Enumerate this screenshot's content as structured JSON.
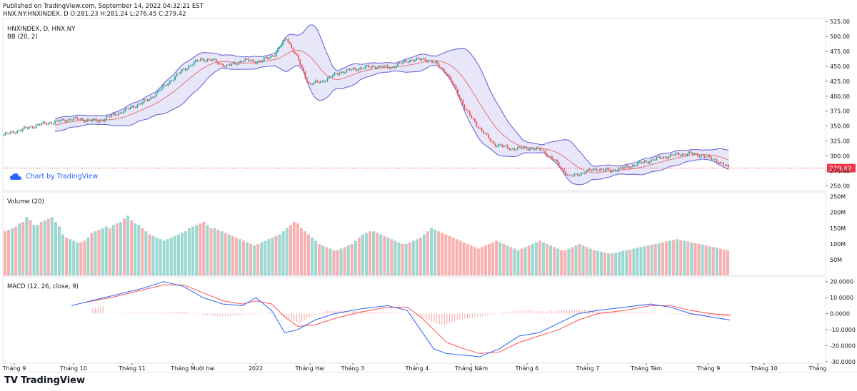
{
  "header": {
    "published": "Published on TradingView.com, September 14, 2022 04:32:21 EST",
    "ohlc": "HNX.NY:HNXINDEX, D O:281.23 H:281.24 L:276.45 C:279.42"
  },
  "price_panel": {
    "symbol_line": "HNXINDEX, D, HNX.NY",
    "indicator_line": "BB (20, 2)",
    "badge_text": "Chart by TradingView"
  },
  "volume_panel": {
    "label": "Volume (20)"
  },
  "macd_panel": {
    "label": "MACD (12, 26, close, 9)"
  },
  "footer": {
    "brand": "TradingView"
  },
  "colors": {
    "up": "#26a69a",
    "down": "#ef5350",
    "bb_band": "#5b5bd6",
    "bb_basis": "#e57373",
    "macd": "#2962ff",
    "signal": "#ff5252",
    "last_price": "#f23645"
  },
  "chart_data": [
    {
      "type": "candlestick",
      "name": "price",
      "y_axis_ticks": [
        "525.00",
        "500.00",
        "475.00",
        "450.00",
        "425.00",
        "400.00",
        "375.00",
        "350.00",
        "325.00",
        "300.00",
        "275.00",
        "250.00"
      ],
      "ylim": [
        242,
        530
      ],
      "last_price": 279.42,
      "anchors": [
        [
          0,
          335
        ],
        [
          20,
          352
        ],
        [
          40,
          362
        ],
        [
          55,
          358
        ],
        [
          70,
          375
        ],
        [
          85,
          395
        ],
        [
          95,
          420
        ],
        [
          105,
          445
        ],
        [
          115,
          462
        ],
        [
          122,
          460
        ],
        [
          130,
          450
        ],
        [
          140,
          460
        ],
        [
          150,
          458
        ],
        [
          158,
          470
        ],
        [
          165,
          498
        ],
        [
          172,
          460
        ],
        [
          178,
          420
        ],
        [
          186,
          425
        ],
        [
          196,
          440
        ],
        [
          206,
          446
        ],
        [
          216,
          450
        ],
        [
          226,
          448
        ],
        [
          236,
          460
        ],
        [
          246,
          462
        ],
        [
          252,
          455
        ],
        [
          258,
          440
        ],
        [
          264,
          410
        ],
        [
          270,
          375
        ],
        [
          278,
          345
        ],
        [
          286,
          320
        ],
        [
          296,
          312
        ],
        [
          306,
          313
        ],
        [
          314,
          310
        ],
        [
          322,
          290
        ],
        [
          330,
          265
        ],
        [
          338,
          272
        ],
        [
          346,
          278
        ],
        [
          354,
          275
        ],
        [
          362,
          280
        ],
        [
          372,
          288
        ],
        [
          382,
          296
        ],
        [
          392,
          302
        ],
        [
          400,
          304
        ],
        [
          408,
          300
        ],
        [
          416,
          292
        ],
        [
          423,
          280
        ]
      ]
    },
    {
      "type": "bar",
      "name": "volume",
      "y_axis_ticks": [
        "250M",
        "200M",
        "150M",
        "100M",
        "50M"
      ],
      "ylim": [
        0,
        265
      ],
      "values_millions": [
        140,
        145,
        150,
        155,
        165,
        170,
        185,
        175,
        160,
        160,
        170,
        175,
        180,
        185,
        170,
        155,
        130,
        120,
        115,
        110,
        105,
        105,
        110,
        120,
        135,
        140,
        145,
        150,
        155,
        150,
        160,
        165,
        170,
        180,
        190,
        175,
        165,
        160,
        150,
        140,
        130,
        125,
        120,
        115,
        110,
        115,
        120,
        125,
        130,
        135,
        140,
        150,
        155,
        160,
        165,
        170,
        160,
        150,
        150,
        145,
        140,
        135,
        130,
        125,
        120,
        115,
        110,
        105,
        100,
        95,
        100,
        105,
        110,
        115,
        120,
        125,
        130,
        140,
        150,
        160,
        170,
        165,
        150,
        140,
        130,
        120,
        110,
        100,
        95,
        90,
        85,
        80,
        80,
        85,
        90,
        95,
        100,
        110,
        120,
        130,
        135,
        140,
        140,
        135,
        130,
        125,
        120,
        115,
        110,
        105,
        100,
        100,
        105,
        110,
        115,
        120,
        130,
        140,
        150,
        145,
        140,
        135,
        130,
        125,
        120,
        115,
        110,
        105,
        100,
        95,
        90,
        85,
        90,
        95,
        100,
        105,
        110,
        105,
        100,
        95,
        90,
        85,
        80,
        85,
        90,
        95,
        100,
        105,
        110,
        105,
        100,
        95,
        90,
        85,
        80,
        80,
        85,
        90,
        95,
        100,
        95,
        90,
        85,
        80,
        78,
        75,
        72,
        70,
        70,
        72,
        75,
        78,
        80,
        82,
        85,
        88,
        90,
        92,
        95,
        98,
        100,
        102,
        105,
        108,
        110,
        112,
        115,
        112,
        110,
        108,
        105,
        102,
        100,
        98,
        95,
        92,
        90,
        88,
        85,
        82,
        80
      ]
    },
    {
      "type": "line",
      "name": "macd",
      "y_axis_ticks": [
        "20.0000",
        "10.0000",
        "0.0000",
        "-10.0000",
        "-20.0000",
        "-30.0000"
      ],
      "ylim": [
        -31,
        23
      ],
      "series": [
        {
          "name": "MACD",
          "anchors": [
            [
              20,
              5
            ],
            [
              40,
              9
            ],
            [
              60,
              13
            ],
            [
              75,
              16
            ],
            [
              90,
              20
            ],
            [
              105,
              17
            ],
            [
              120,
              10
            ],
            [
              135,
              6
            ],
            [
              150,
              5
            ],
            [
              160,
              10
            ],
            [
              172,
              2
            ],
            [
              182,
              -12
            ],
            [
              192,
              -10
            ],
            [
              205,
              -4
            ],
            [
              220,
              0
            ],
            [
              240,
              3
            ],
            [
              260,
              5
            ],
            [
              275,
              2
            ],
            [
              285,
              -10
            ],
            [
              295,
              -22
            ],
            [
              305,
              -25
            ],
            [
              318,
              -26
            ],
            [
              330,
              -27
            ],
            [
              345,
              -22
            ],
            [
              360,
              -14
            ],
            [
              375,
              -12
            ],
            [
              390,
              -6
            ],
            [
              405,
              0
            ],
            [
              420,
              2
            ],
            [
              440,
              4
            ],
            [
              460,
              6
            ],
            [
              475,
              4
            ],
            [
              490,
              0
            ],
            [
              505,
              -2
            ],
            [
              520,
              -4
            ]
          ]
        },
        {
          "name": "Signal",
          "anchors": [
            [
              30,
              7
            ],
            [
              50,
              10
            ],
            [
              70,
              14
            ],
            [
              90,
              18
            ],
            [
              105,
              18
            ],
            [
              120,
              13
            ],
            [
              135,
              8
            ],
            [
              150,
              6
            ],
            [
              160,
              8
            ],
            [
              172,
              6
            ],
            [
              182,
              -2
            ],
            [
              192,
              -8
            ],
            [
              205,
              -7
            ],
            [
              220,
              -3
            ],
            [
              240,
              1
            ],
            [
              260,
              4
            ],
            [
              275,
              4
            ],
            [
              285,
              -2
            ],
            [
              295,
              -10
            ],
            [
              305,
              -18
            ],
            [
              318,
              -22
            ],
            [
              330,
              -25
            ],
            [
              345,
              -24
            ],
            [
              360,
              -18
            ],
            [
              375,
              -14
            ],
            [
              390,
              -10
            ],
            [
              405,
              -4
            ],
            [
              420,
              0
            ],
            [
              440,
              2
            ],
            [
              460,
              5
            ],
            [
              475,
              5
            ],
            [
              490,
              2
            ],
            [
              505,
              0
            ],
            [
              520,
              -1
            ]
          ]
        }
      ]
    }
  ],
  "x_axis_ticks": [
    {
      "label": "Tháng 9",
      "x": 20
    },
    {
      "label": "Tháng 10",
      "x": 103
    },
    {
      "label": "Tháng 11",
      "x": 185
    },
    {
      "label": "Tháng Mười hai",
      "x": 270
    },
    {
      "label": "2022",
      "x": 358
    },
    {
      "label": "Tháng Hai",
      "x": 434
    },
    {
      "label": "Tháng 3",
      "x": 494
    },
    {
      "label": "Tháng 4",
      "x": 584
    },
    {
      "label": "Tháng Năm",
      "x": 660
    },
    {
      "label": "Tháng 6",
      "x": 738
    },
    {
      "label": "Tháng 7",
      "x": 823
    },
    {
      "label": "Tháng Tám",
      "x": 905
    },
    {
      "label": "Tháng 9",
      "x": 992
    },
    {
      "label": "Tháng 10",
      "x": 1070
    },
    {
      "label": "Tháng",
      "x": 1145
    }
  ]
}
